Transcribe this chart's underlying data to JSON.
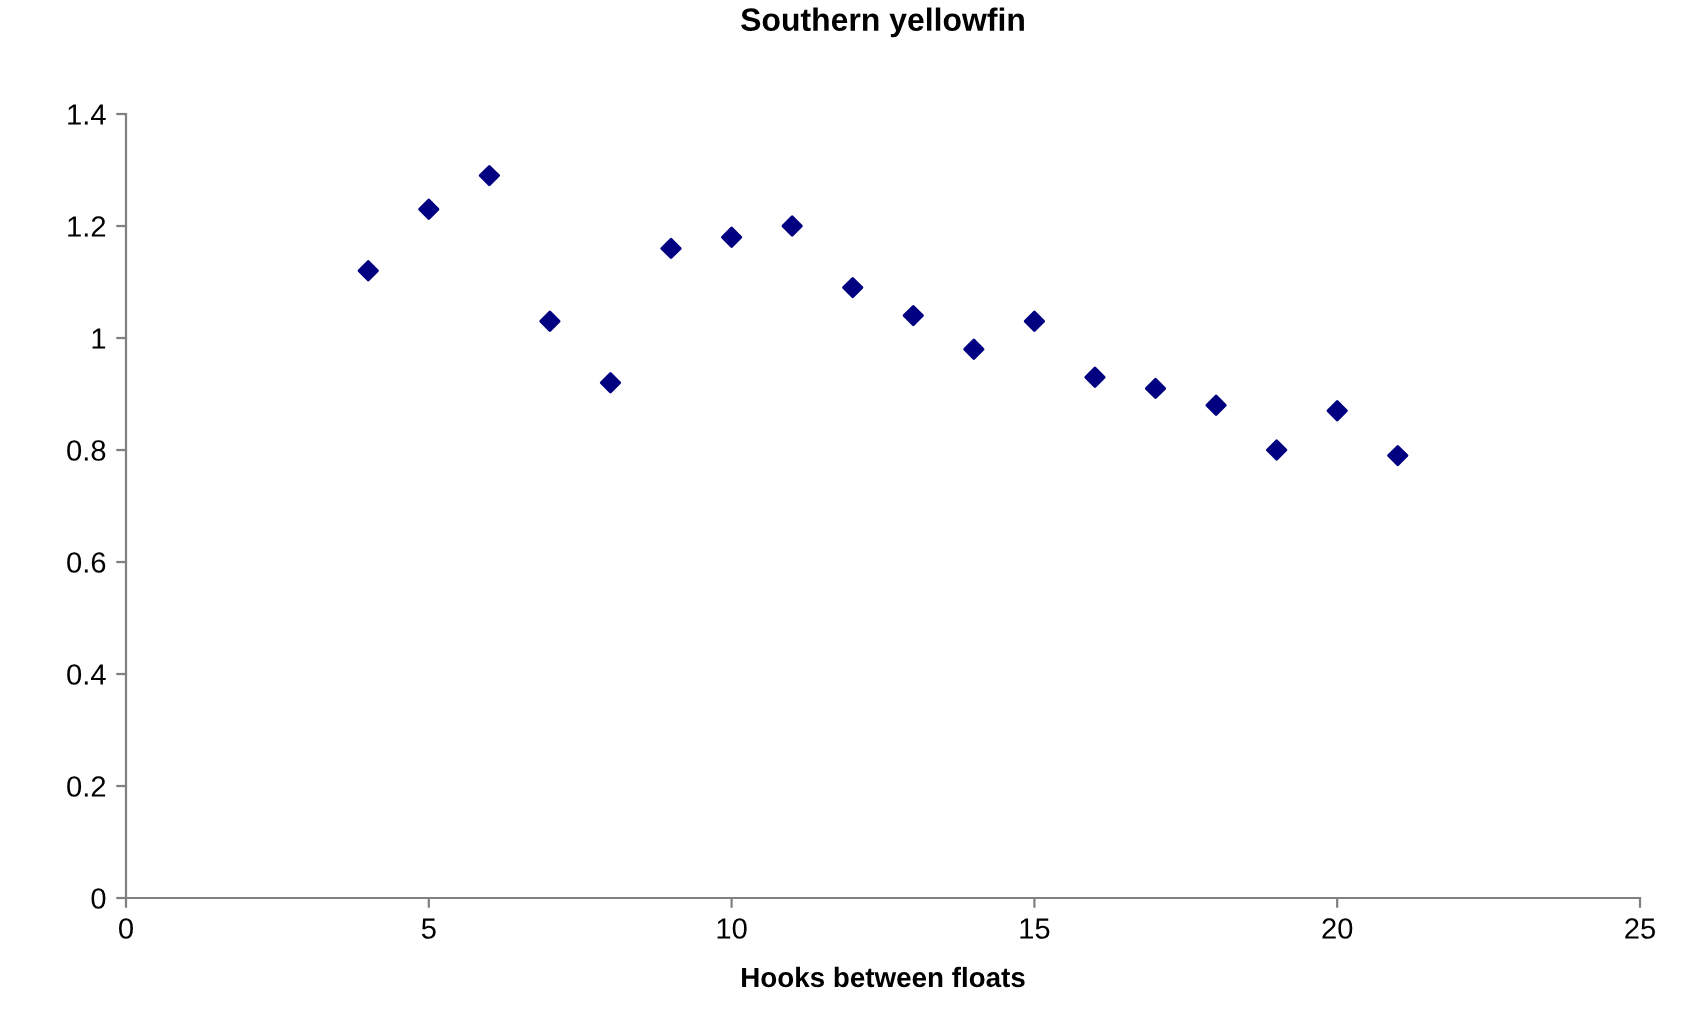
{
  "chart_data": {
    "type": "scatter",
    "title": "Southern yellowfin",
    "xlabel": "Hooks between floats",
    "x": [
      4,
      5,
      6,
      7,
      8,
      9,
      10,
      11,
      12,
      13,
      14,
      15,
      16,
      17,
      18,
      19,
      20,
      21
    ],
    "series": [
      {
        "color": "#000080",
        "values": [
          1.12,
          1.23,
          1.29,
          1.03,
          0.92,
          1.16,
          1.18,
          1.2,
          1.09,
          1.04,
          0.98,
          1.03,
          0.93,
          0.91,
          0.88,
          0.8,
          0.87,
          0.79
        ]
      }
    ],
    "xlim": [
      0,
      25
    ],
    "xticks": [
      0,
      5,
      10,
      15,
      20,
      25
    ],
    "ylim": [
      0,
      1.4
    ],
    "yticks": [
      0,
      0.2,
      0.4,
      0.6,
      0.8,
      1,
      1.2,
      1.4
    ],
    "marker": "diamond",
    "grid": false,
    "legend": false
  }
}
